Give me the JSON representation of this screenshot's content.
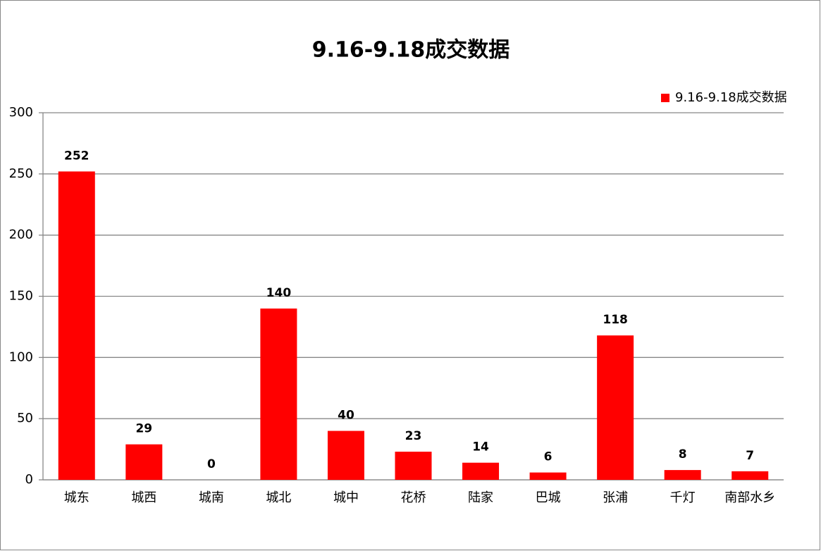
{
  "chart_data": {
    "type": "bar",
    "title": "9.16-9.18成交数据",
    "categories": [
      "城东",
      "城西",
      "城南",
      "城北",
      "城中",
      "花桥",
      "陆家",
      "巴城",
      "张浦",
      "千灯",
      "南部水乡"
    ],
    "series": [
      {
        "name": "9.16-9.18成交数据",
        "color": "#ff0000",
        "values": [
          252,
          29,
          0,
          140,
          40,
          23,
          14,
          6,
          118,
          8,
          7
        ]
      }
    ],
    "ylim": [
      0,
      300
    ],
    "yticks": [
      0,
      50,
      100,
      150,
      200,
      250,
      300
    ],
    "grid": true,
    "legend": "top-right"
  }
}
